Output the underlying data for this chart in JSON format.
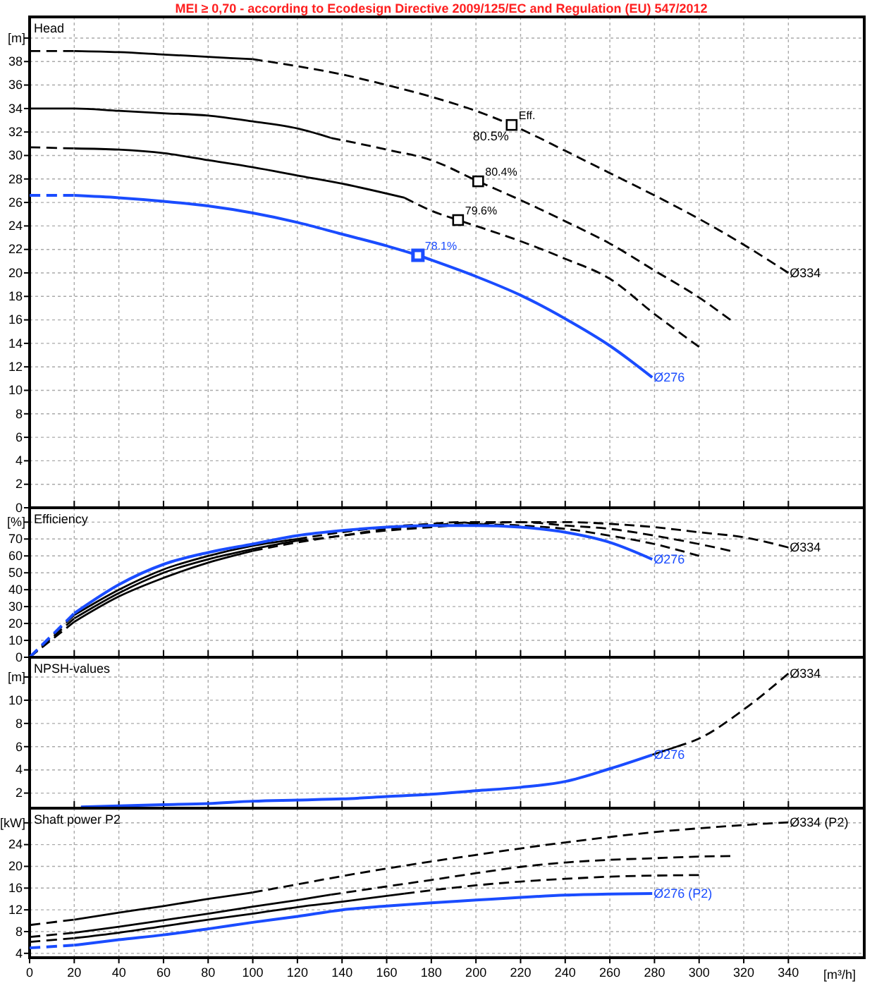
{
  "chart_data": [
    {
      "type": "line",
      "title": "Head",
      "ylabel": "[m]",
      "annotations": [
        "MEI ≥ 0,70 - according to Ecodesign Directive 2009/125/EC and Regulation (EU) 547/2012",
        {
          "text": "Eff.",
          "x": 216,
          "y": 32.6
        },
        {
          "text": "80.5%",
          "x": 216,
          "y": 32.6
        },
        {
          "text": "80.4%",
          "x": 201,
          "y": 27.8
        },
        {
          "text": "79.6%",
          "x": 192,
          "y": 24.5
        },
        {
          "text": "78.1%",
          "x": 174,
          "y": 21.5
        }
      ],
      "xlim": [
        0,
        374
      ],
      "xticks": [
        0,
        20,
        40,
        60,
        80,
        100,
        120,
        140,
        160,
        180,
        200,
        220,
        240,
        260,
        280,
        300,
        320,
        340
      ],
      "ylim": [
        0,
        41.8
      ],
      "yticks": [
        0,
        2,
        4,
        6,
        8,
        10,
        12,
        14,
        16,
        18,
        20,
        22,
        24,
        26,
        28,
        30,
        32,
        34,
        36,
        38,
        {
          "value": 40,
          "label": null
        }
      ],
      "grid": true,
      "tick_labels": "y",
      "series": [
        {
          "name": "Ø334",
          "color": "#000000",
          "line_style": "dashed",
          "x": [
            100,
            120,
            140,
            160,
            180,
            200,
            216,
            240,
            260,
            280,
            300,
            320,
            340
          ],
          "values": [
            38.2,
            37.6,
            36.9,
            36.0,
            35.0,
            33.8,
            32.6,
            30.4,
            28.5,
            26.6,
            24.6,
            22.4,
            20.0
          ]
        },
        {
          "color": "#000000",
          "line_style": "dashed",
          "x": [
            0,
            20
          ],
          "values": [
            38.9,
            38.9
          ]
        },
        {
          "color": "#000000",
          "line_style": "solid",
          "x": [
            20,
            40,
            60,
            80,
            100
          ],
          "values": [
            38.9,
            38.8,
            38.6,
            38.4,
            38.2
          ]
        },
        {
          "color": "#000000",
          "line_style": "solid",
          "x": [
            0,
            20,
            40,
            60,
            80,
            100,
            120,
            135
          ],
          "values": [
            34.0,
            34.0,
            33.8,
            33.6,
            33.4,
            32.9,
            32.3,
            31.5
          ]
        },
        {
          "color": "#000000",
          "line_style": "dashed",
          "x": [
            135,
            160,
            180,
            201,
            220,
            240,
            260,
            280,
            300,
            314
          ],
          "values": [
            31.5,
            30.5,
            29.6,
            27.8,
            26.2,
            24.4,
            22.5,
            20.2,
            17.9,
            16.0
          ]
        },
        {
          "color": "#000000",
          "line_style": "dashed",
          "x": [
            0,
            20
          ],
          "values": [
            30.7,
            30.6
          ]
        },
        {
          "color": "#000000",
          "line_style": "solid",
          "x": [
            20,
            40,
            60,
            80,
            100,
            120,
            140,
            168
          ],
          "values": [
            30.6,
            30.5,
            30.2,
            29.6,
            29.0,
            28.3,
            27.6,
            26.4
          ]
        },
        {
          "color": "#000000",
          "line_style": "dashed",
          "x": [
            168,
            180,
            192,
            200,
            220,
            240,
            260,
            280,
            300
          ],
          "values": [
            26.4,
            25.3,
            24.5,
            24.0,
            22.7,
            21.2,
            19.5,
            16.5,
            13.7
          ]
        },
        {
          "color": "#1a4cff",
          "line_style": "dashed",
          "x": [
            0,
            20
          ],
          "values": [
            26.6,
            26.6
          ]
        },
        {
          "name": "Ø276",
          "color": "#1a4cff",
          "line_style": "solid",
          "x": [
            20,
            40,
            60,
            80,
            100,
            120,
            140,
            160,
            174,
            180,
            200,
            220,
            240,
            260,
            279
          ],
          "values": [
            26.6,
            26.4,
            26.1,
            25.7,
            25.1,
            24.3,
            23.3,
            22.3,
            21.5,
            21.1,
            19.7,
            18.1,
            16.1,
            13.8,
            11.1
          ]
        },
        {
          "type": "scatter",
          "marker": "square",
          "color": "#000000",
          "x": [
            216,
            201,
            192
          ],
          "values": [
            32.6,
            27.8,
            24.5
          ]
        },
        {
          "type": "scatter",
          "marker": "square",
          "color": "#1a4cff",
          "x": [
            174
          ],
          "values": [
            21.5
          ]
        }
      ]
    },
    {
      "type": "line",
      "title": "Efficiency",
      "ylabel": "[%]",
      "xlim": [
        0,
        374
      ],
      "xticks": [
        0,
        20,
        40,
        60,
        80,
        100,
        120,
        140,
        160,
        180,
        200,
        220,
        240,
        260,
        280,
        300,
        320,
        340
      ],
      "ylim": [
        0,
        88.5
      ],
      "yticks": [
        0,
        10,
        20,
        30,
        40,
        50,
        60,
        70,
        {
          "value": 80,
          "label": null
        }
      ],
      "grid": true,
      "tick_labels": "y",
      "series": [
        {
          "name": "Ø334",
          "color": "#000000",
          "line_style": "dashed",
          "x": [
            100,
            120,
            140,
            160,
            180,
            200,
            220,
            240,
            260,
            280,
            300,
            320,
            340
          ],
          "values": [
            63,
            68,
            72,
            75,
            77,
            79,
            80,
            80,
            79,
            77,
            74,
            71,
            65
          ]
        },
        {
          "color": "#000000",
          "line_style": "dashed",
          "x": [
            0,
            20
          ],
          "values": [
            0,
            21
          ]
        },
        {
          "color": "#000000",
          "line_style": "solid",
          "x": [
            20,
            40,
            60,
            80,
            100
          ],
          "values": [
            21,
            36,
            47,
            56,
            63
          ]
        },
        {
          "color": "#000000",
          "line_style": "dashed",
          "x": [
            0,
            20
          ],
          "values": [
            0,
            23
          ]
        },
        {
          "color": "#000000",
          "line_style": "solid",
          "x": [
            20,
            40,
            60,
            80,
            100,
            120
          ],
          "values": [
            23,
            38,
            50,
            58,
            64,
            69
          ]
        },
        {
          "color": "#000000",
          "line_style": "dashed",
          "x": [
            120,
            140,
            160,
            180,
            200,
            220,
            240,
            260,
            280,
            300,
            314
          ],
          "values": [
            69,
            72,
            76,
            78,
            80,
            80,
            78,
            76,
            72,
            67,
            63
          ]
        },
        {
          "color": "#000000",
          "line_style": "dashed",
          "x": [
            0,
            20
          ],
          "values": [
            0,
            25
          ]
        },
        {
          "color": "#000000",
          "line_style": "solid",
          "x": [
            20,
            40,
            60,
            80,
            100,
            120
          ],
          "values": [
            25,
            40,
            52,
            60,
            66,
            70
          ]
        },
        {
          "color": "#000000",
          "line_style": "dashed",
          "x": [
            120,
            140,
            168,
            180,
            192,
            200,
            220,
            240,
            260,
            280,
            300
          ],
          "values": [
            70,
            74,
            78,
            79,
            80,
            79,
            78,
            76,
            72,
            67,
            60
          ]
        },
        {
          "color": "#1a4cff",
          "line_style": "dashed",
          "x": [
            0,
            20
          ],
          "values": [
            0,
            26
          ]
        },
        {
          "name": "Ø276",
          "color": "#1a4cff",
          "line_style": "solid",
          "x": [
            20,
            40,
            60,
            80,
            100,
            120,
            140,
            160,
            180,
            200,
            220,
            240,
            260,
            279
          ],
          "values": [
            26,
            43,
            55,
            62,
            67,
            72,
            75,
            77,
            78,
            78,
            77,
            74,
            68,
            58
          ]
        }
      ]
    },
    {
      "type": "line",
      "title": "NPSH-values",
      "ylabel": "[m]",
      "xlim": [
        0,
        374
      ],
      "xticks": [
        0,
        20,
        40,
        60,
        80,
        100,
        120,
        140,
        160,
        180,
        200,
        220,
        240,
        260,
        280,
        300,
        320,
        340
      ],
      "ylim": [
        0.7,
        13.7
      ],
      "yticks": [
        2,
        4,
        6,
        8,
        10,
        {
          "value": 12,
          "label": null
        }
      ],
      "grid": true,
      "tick_labels": "y",
      "series": [
        {
          "color": "#000000",
          "line_style": "solid",
          "x": [
            279,
            290
          ],
          "values": [
            5.3,
            6.0
          ]
        },
        {
          "name": "Ø334",
          "color": "#000000",
          "line_style": "dashed",
          "x": [
            290,
            300,
            320,
            340
          ],
          "values": [
            6.0,
            6.7,
            9.2,
            12.3
          ]
        },
        {
          "name": "Ø276",
          "color": "#1a4cff",
          "line_style": "solid",
          "x": [
            23,
            40,
            60,
            80,
            100,
            120,
            140,
            160,
            180,
            200,
            220,
            240,
            260,
            279
          ],
          "values": [
            0.8,
            0.9,
            1.0,
            1.1,
            1.3,
            1.4,
            1.5,
            1.7,
            1.9,
            2.2,
            2.5,
            3.0,
            4.1,
            5.3
          ]
        }
      ]
    },
    {
      "type": "line",
      "title": "Shaft power P2",
      "ylabel": "[kW]",
      "xlabel": "[m³/h]",
      "xlim": [
        0,
        374
      ],
      "xticks": [
        0,
        20,
        40,
        60,
        80,
        100,
        120,
        140,
        160,
        180,
        200,
        220,
        240,
        260,
        280,
        300,
        320,
        340
      ],
      "ylim": [
        3.2,
        30.7
      ],
      "yticks": [
        4,
        8,
        12,
        16,
        20,
        24,
        {
          "value": 28,
          "label": null
        }
      ],
      "grid": true,
      "series": [
        {
          "name": "Ø334 (P2)",
          "color": "#000000",
          "line_style": "dashed",
          "x": [
            100,
            120,
            140,
            160,
            180,
            200,
            220,
            240,
            260,
            280,
            300,
            320,
            340
          ],
          "values": [
            15.2,
            16.7,
            18.2,
            19.6,
            20.9,
            22.1,
            23.3,
            24.4,
            25.4,
            26.3,
            27.0,
            27.6,
            28.1
          ]
        },
        {
          "color": "#000000",
          "line_style": "dashed",
          "x": [
            0,
            20
          ],
          "values": [
            9.2,
            10.2
          ]
        },
        {
          "color": "#000000",
          "line_style": "solid",
          "x": [
            20,
            40,
            60,
            80,
            100
          ],
          "values": [
            10.2,
            11.5,
            12.7,
            14.0,
            15.2
          ]
        },
        {
          "color": "#000000",
          "line_style": "dashed",
          "x": [
            0,
            20
          ],
          "values": [
            7.0,
            7.8
          ]
        },
        {
          "color": "#000000",
          "line_style": "solid",
          "x": [
            20,
            40,
            60,
            80,
            100,
            120,
            135
          ],
          "values": [
            7.8,
            8.9,
            10.1,
            11.3,
            12.6,
            13.8,
            14.8
          ]
        },
        {
          "color": "#000000",
          "line_style": "dashed",
          "x": [
            135,
            160,
            180,
            201,
            220,
            240,
            260,
            280,
            300,
            314
          ],
          "values": [
            14.8,
            16.3,
            17.5,
            18.8,
            19.9,
            20.7,
            21.2,
            21.5,
            21.8,
            21.9
          ]
        },
        {
          "color": "#000000",
          "line_style": "dashed",
          "x": [
            0,
            20
          ],
          "values": [
            6.1,
            6.8
          ]
        },
        {
          "color": "#000000",
          "line_style": "solid",
          "x": [
            20,
            40,
            60,
            80,
            100,
            120,
            140,
            168
          ],
          "values": [
            6.8,
            7.8,
            9.0,
            10.2,
            11.3,
            12.5,
            13.5,
            15.0
          ]
        },
        {
          "color": "#000000",
          "line_style": "dashed",
          "x": [
            168,
            180,
            200,
            220,
            240,
            260,
            280,
            300
          ],
          "values": [
            15.0,
            15.6,
            16.5,
            17.2,
            17.7,
            18.1,
            18.3,
            18.4
          ]
        },
        {
          "color": "#1a4cff",
          "line_style": "dashed",
          "x": [
            0,
            20
          ],
          "values": [
            5.0,
            5.5
          ]
        },
        {
          "name": "Ø276 (P2)",
          "color": "#1a4cff",
          "line_style": "solid",
          "x": [
            20,
            40,
            60,
            80,
            100,
            120,
            140,
            160,
            180,
            200,
            220,
            240,
            260,
            279
          ],
          "values": [
            5.5,
            6.5,
            7.4,
            8.5,
            9.7,
            10.8,
            12.0,
            12.7,
            13.3,
            13.8,
            14.3,
            14.7,
            14.9,
            15.0
          ]
        }
      ]
    }
  ]
}
